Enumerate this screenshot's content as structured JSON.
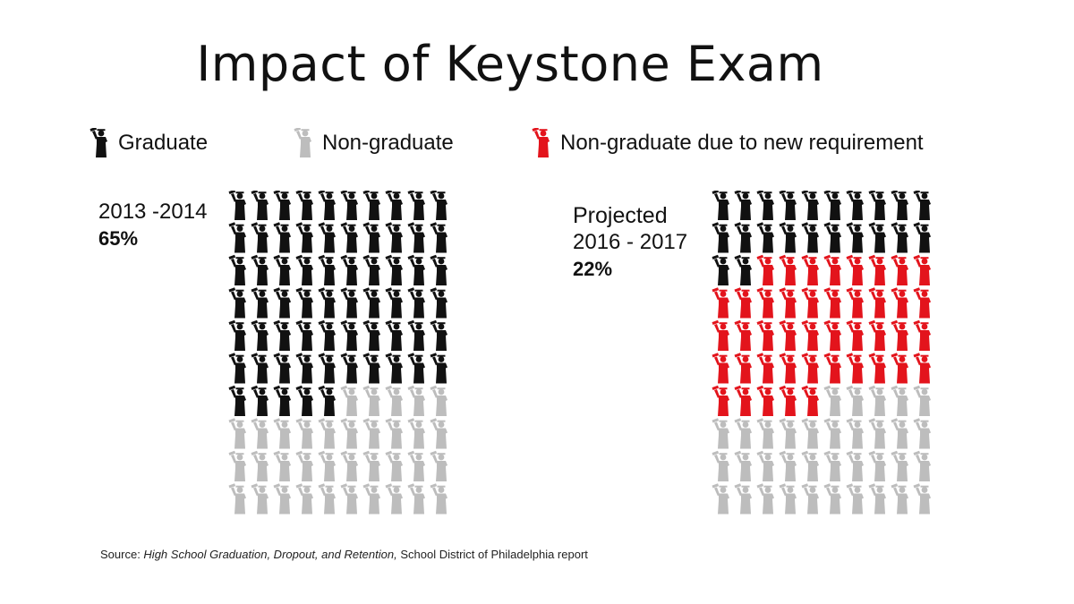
{
  "title": "Impact of Keystone Exam",
  "legend": [
    {
      "label": "Graduate",
      "color": "#111111"
    },
    {
      "label": "Non-graduate",
      "color": "#bdbdbd"
    },
    {
      "label": "Non-graduate due to new requirement",
      "color": "#e3141c"
    }
  ],
  "chart_data": [
    {
      "type": "waffle",
      "period": "2013 -2014",
      "percent_label": "65%",
      "total": 100,
      "columns": 10,
      "counts": {
        "Graduate": 65,
        "Non-graduate": 35,
        "Non-graduate due to new requirement": 0
      }
    },
    {
      "type": "waffle",
      "period_prefix": "Projected",
      "period": "2016 - 2017",
      "percent_label": "22%",
      "total": 100,
      "columns": 10,
      "counts": {
        "Graduate": 22,
        "Non-graduate due to new requirement": 43,
        "Non-graduate": 35
      }
    }
  ],
  "source": {
    "prefix": "Source:  ",
    "italic": "High School Graduation, Dropout, and Retention,",
    "suffix": " School District of Philadelphia report"
  }
}
